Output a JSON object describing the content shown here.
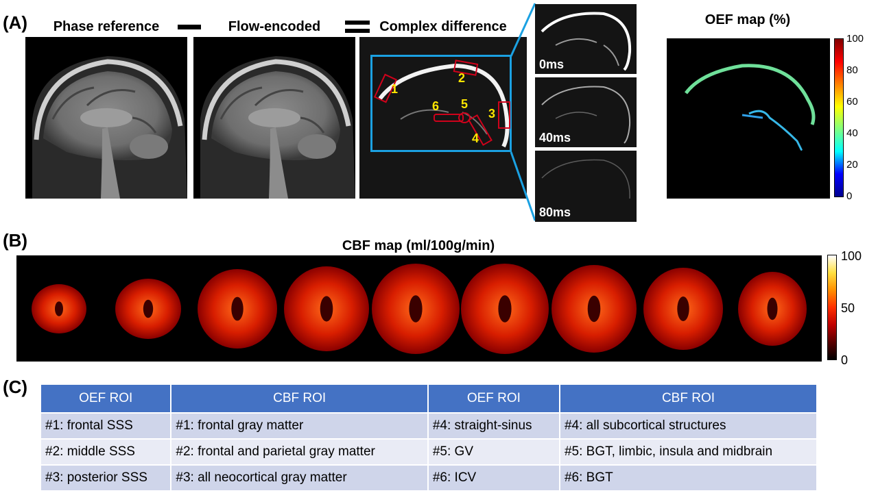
{
  "panels": {
    "a": "(A)",
    "b": "(B)",
    "c": "(C)"
  },
  "panel_a": {
    "titles": [
      "Phase reference",
      "Flow-encoded",
      "Complex difference"
    ],
    "roi_numbers": [
      "1",
      "2",
      "3",
      "4",
      "5",
      "6"
    ],
    "time_labels": [
      "0ms",
      "40ms",
      "80ms"
    ],
    "oef_title": "OEF map (%)",
    "oef_colorbar_ticks": [
      "100",
      "80",
      "60",
      "40",
      "20",
      "0"
    ]
  },
  "panel_b": {
    "title": "CBF map (ml/100g/min)",
    "slice_count": 9,
    "cbf_colorbar_ticks": [
      "100",
      "50",
      "0"
    ]
  },
  "table": {
    "headers": [
      "OEF ROI",
      "CBF ROI",
      "OEF ROI",
      "CBF ROI"
    ],
    "rows": [
      [
        "#1: frontal SSS",
        "#1: frontal gray matter",
        "#4: straight-sinus",
        "#4: all subcortical structures"
      ],
      [
        "#2: middle SSS",
        "#2: frontal and parietal gray matter",
        "#5: GV",
        "#5: BGT, limbic, insula and midbrain"
      ],
      [
        "#3: posterior SSS",
        "#3: all neocortical gray matter",
        "#6: ICV",
        "#6: BGT"
      ]
    ]
  },
  "colors": {
    "header_blue": "#4472C4",
    "row_dark": "#CFD5EA",
    "row_light": "#E9EBF5",
    "zoom_box": "#1BA1E2",
    "roi_red": "#D0021B",
    "roi_number": "#FFE600"
  }
}
